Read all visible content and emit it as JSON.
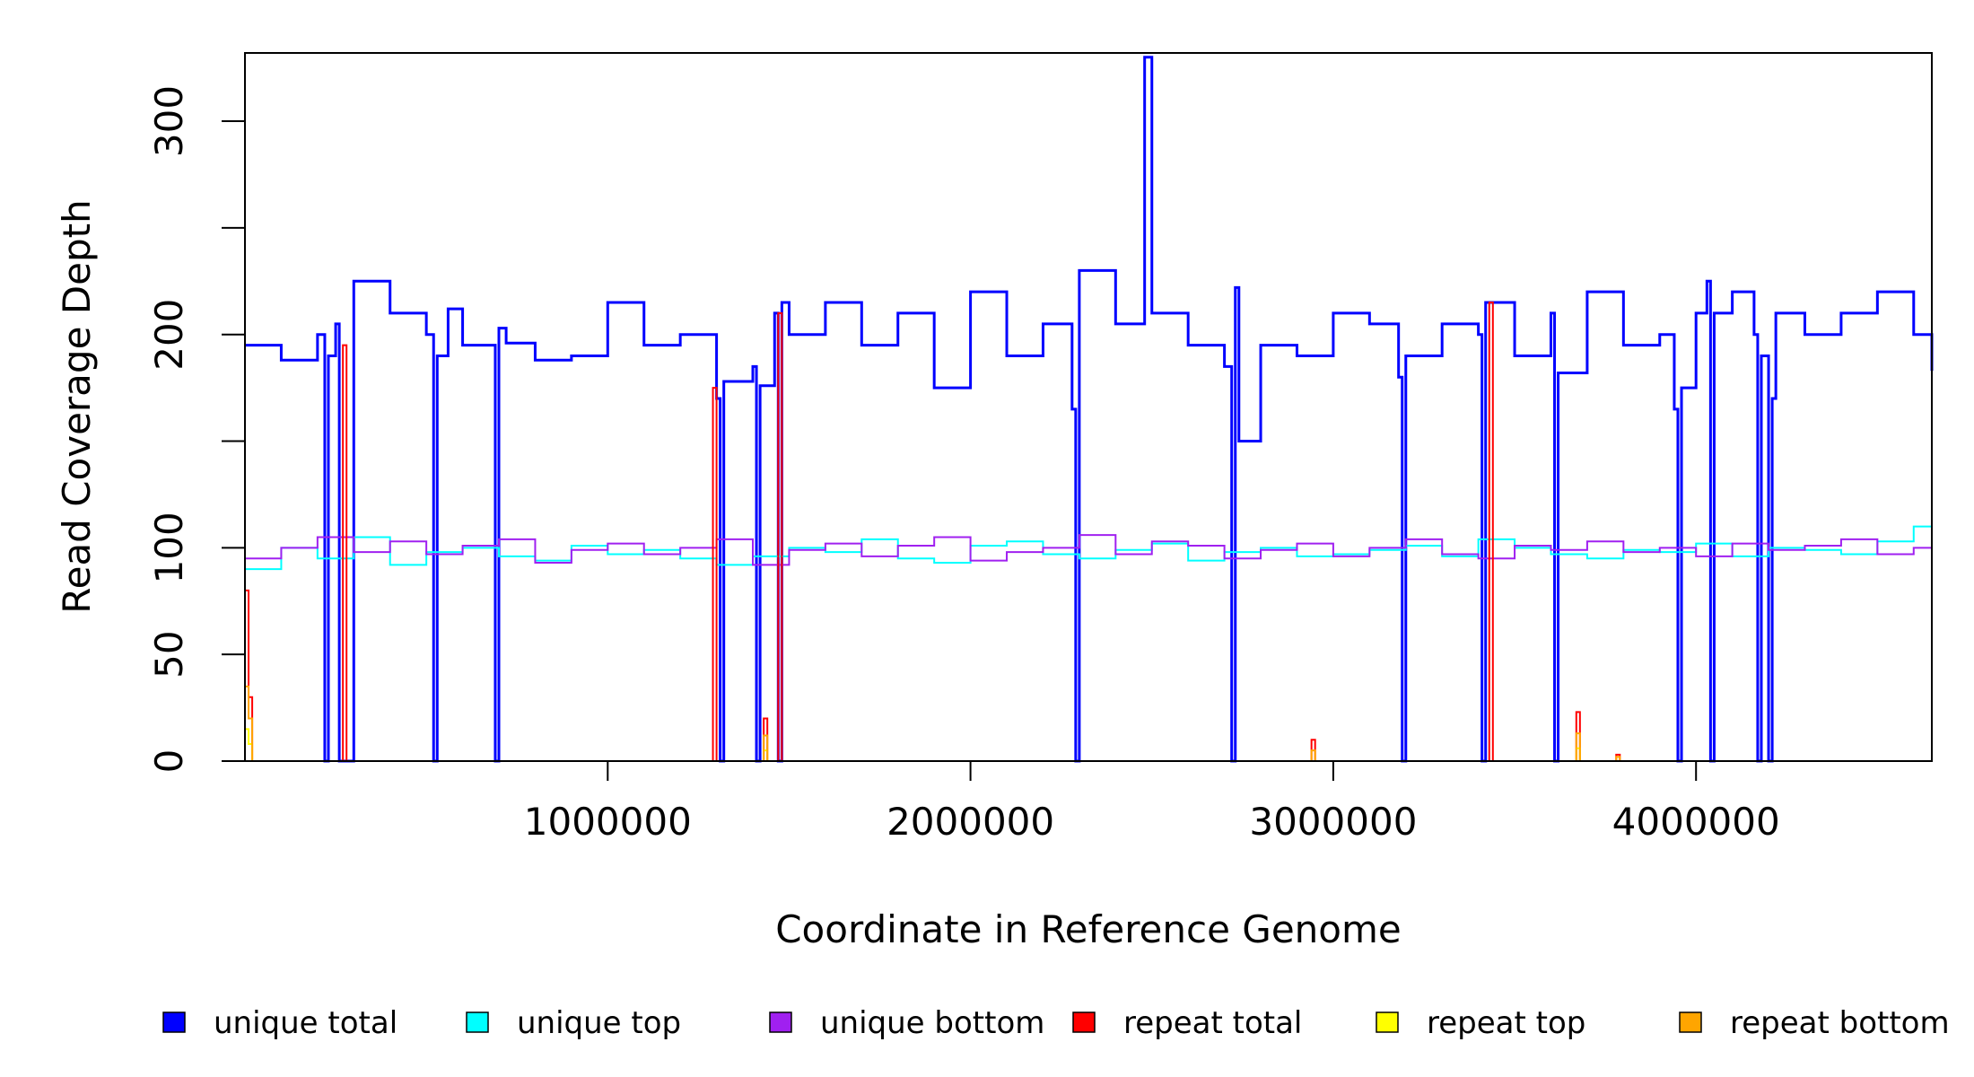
{
  "chart_data": {
    "type": "line",
    "title": "",
    "xlabel": "Coordinate in Reference Genome",
    "ylabel": "Read Coverage Depth",
    "xlim": [
      0,
      4650000
    ],
    "ylim": [
      0,
      332
    ],
    "x_ticks": [
      {
        "value": 1000000,
        "label": "1000000"
      },
      {
        "value": 2000000,
        "label": "2000000"
      },
      {
        "value": 3000000,
        "label": "3000000"
      },
      {
        "value": 4000000,
        "label": "4000000"
      }
    ],
    "y_ticks": [
      {
        "value": 0,
        "label": "0"
      },
      {
        "value": 50,
        "label": "50"
      },
      {
        "value": 100,
        "label": "100"
      },
      {
        "value": 150,
        "label": ""
      },
      {
        "value": 200,
        "label": "200"
      },
      {
        "value": 250,
        "label": ""
      },
      {
        "value": 300,
        "label": "300"
      }
    ],
    "grid": false,
    "legend_position": "bottom",
    "series": [
      {
        "name": "unique total",
        "color": "#0000ff",
        "x": [
          0,
          100000,
          200000,
          220000,
          230000,
          250000,
          260000,
          300000,
          400000,
          500000,
          520000,
          530000,
          560000,
          600000,
          690000,
          700000,
          720000,
          800000,
          900000,
          1000000,
          1100000,
          1200000,
          1300000,
          1310000,
          1320000,
          1400000,
          1410000,
          1420000,
          1460000,
          1470000,
          1480000,
          1500000,
          1600000,
          1700000,
          1800000,
          1900000,
          2000000,
          2100000,
          2200000,
          2280000,
          2290000,
          2300000,
          2400000,
          2480000,
          2500000,
          2600000,
          2700000,
          2720000,
          2730000,
          2740000,
          2800000,
          2900000,
          3000000,
          3100000,
          3180000,
          3190000,
          3200000,
          3300000,
          3400000,
          3410000,
          3420000,
          3500000,
          3600000,
          3610000,
          3620000,
          3700000,
          3800000,
          3900000,
          3940000,
          3950000,
          3960000,
          4000000,
          4030000,
          4040000,
          4050000,
          4100000,
          4160000,
          4170000,
          4180000,
          4200000,
          4210000,
          4220000,
          4300000,
          4400000,
          4500000,
          4600000,
          4650000
        ],
        "y": [
          195,
          188,
          200,
          0,
          190,
          205,
          0,
          225,
          210,
          200,
          0,
          190,
          212,
          195,
          0,
          203,
          196,
          188,
          190,
          215,
          195,
          200,
          170,
          0,
          178,
          185,
          0,
          176,
          210,
          0,
          215,
          200,
          215,
          195,
          210,
          175,
          220,
          190,
          205,
          165,
          0,
          230,
          205,
          330,
          210,
          195,
          185,
          0,
          222,
          150,
          195,
          190,
          210,
          205,
          180,
          0,
          190,
          205,
          200,
          0,
          215,
          190,
          210,
          0,
          182,
          220,
          195,
          200,
          165,
          0,
          175,
          210,
          225,
          0,
          210,
          220,
          200,
          0,
          190,
          0,
          170,
          210,
          200,
          210,
          220,
          200,
          183
        ]
      },
      {
        "name": "unique top",
        "color": "#00ffff",
        "x": [
          0,
          100000,
          200000,
          300000,
          400000,
          500000,
          600000,
          700000,
          800000,
          900000,
          1000000,
          1100000,
          1200000,
          1300000,
          1400000,
          1500000,
          1600000,
          1700000,
          1800000,
          1900000,
          2000000,
          2100000,
          2200000,
          2300000,
          2400000,
          2500000,
          2600000,
          2700000,
          2800000,
          2900000,
          3000000,
          3100000,
          3200000,
          3300000,
          3400000,
          3500000,
          3600000,
          3700000,
          3800000,
          3900000,
          4000000,
          4100000,
          4200000,
          4300000,
          4400000,
          4500000,
          4600000,
          4650000
        ],
        "y": [
          90,
          100,
          95,
          105,
          92,
          98,
          100,
          96,
          94,
          101,
          97,
          99,
          95,
          92,
          96,
          100,
          98,
          104,
          95,
          93,
          101,
          103,
          97,
          95,
          99,
          102,
          94,
          98,
          100,
          96,
          97,
          99,
          101,
          96,
          104,
          100,
          97,
          95,
          99,
          98,
          102,
          96,
          100,
          99,
          97,
          103,
          110,
          112
        ]
      },
      {
        "name": "unique bottom",
        "color": "#a020f0",
        "x": [
          0,
          100000,
          200000,
          300000,
          400000,
          500000,
          600000,
          700000,
          800000,
          900000,
          1000000,
          1100000,
          1200000,
          1300000,
          1400000,
          1500000,
          1600000,
          1700000,
          1800000,
          1900000,
          2000000,
          2100000,
          2200000,
          2300000,
          2400000,
          2500000,
          2600000,
          2700000,
          2800000,
          2900000,
          3000000,
          3100000,
          3200000,
          3300000,
          3400000,
          3500000,
          3600000,
          3700000,
          3800000,
          3900000,
          4000000,
          4100000,
          4200000,
          4300000,
          4400000,
          4500000,
          4600000,
          4650000
        ],
        "y": [
          95,
          100,
          105,
          98,
          103,
          97,
          101,
          104,
          93,
          99,
          102,
          97,
          100,
          104,
          92,
          99,
          102,
          96,
          101,
          105,
          94,
          98,
          100,
          106,
          97,
          103,
          101,
          95,
          99,
          102,
          96,
          100,
          104,
          97,
          95,
          101,
          99,
          103,
          98,
          100,
          96,
          102,
          99,
          101,
          104,
          97,
          100,
          90
        ]
      },
      {
        "name": "repeat total",
        "color": "#ff0000",
        "x": [
          0,
          10000,
          20000,
          260000,
          270000,
          280000,
          1280000,
          1290000,
          1300000,
          1420000,
          1430000,
          1440000,
          1460000,
          1470000,
          1480000,
          2930000,
          2940000,
          2950000,
          3420000,
          3430000,
          3440000,
          3660000,
          3670000,
          3680000,
          3770000,
          3780000,
          3790000,
          4650000
        ],
        "y": [
          80,
          30,
          0,
          0,
          195,
          0,
          0,
          175,
          0,
          0,
          20,
          0,
          0,
          210,
          0,
          0,
          10,
          0,
          0,
          215,
          0,
          0,
          23,
          0,
          0,
          3,
          0,
          0
        ]
      },
      {
        "name": "repeat top",
        "color": "#ffff00",
        "x": [
          0,
          10000,
          20000,
          1420000,
          1430000,
          1440000,
          3660000,
          3670000,
          3680000,
          4650000
        ],
        "y": [
          15,
          8,
          0,
          0,
          5,
          0,
          0,
          6,
          0,
          0
        ]
      },
      {
        "name": "repeat bottom",
        "color": "#ffa500",
        "x": [
          0,
          10000,
          20000,
          1420000,
          1430000,
          1440000,
          2930000,
          2940000,
          2950000,
          3660000,
          3670000,
          3680000,
          3770000,
          3780000,
          3790000,
          4650000
        ],
        "y": [
          35,
          20,
          0,
          0,
          12,
          0,
          0,
          5,
          0,
          0,
          13,
          0,
          0,
          2,
          0,
          0
        ]
      }
    ]
  }
}
